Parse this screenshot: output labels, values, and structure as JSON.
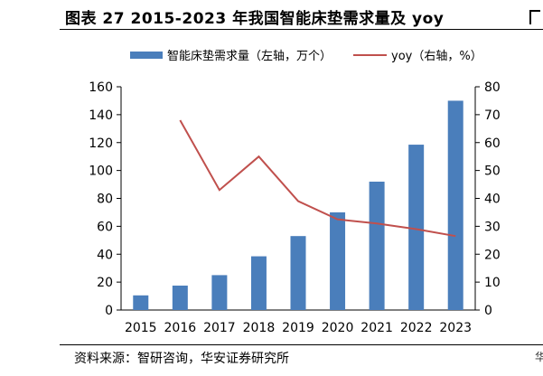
{
  "header": {
    "title": "图表 27 2015-2023 年我国智能床垫需求量及 yoy"
  },
  "footer": {
    "source": "资料来源：智研咨询，华安证券研究所",
    "edge_fragment": "华"
  },
  "chart_data": {
    "type": "bar",
    "title": "图表 27 2015-2023 年我国智能床垫需求量及 yoy",
    "categories": [
      "2015",
      "2016",
      "2017",
      "2018",
      "2019",
      "2020",
      "2021",
      "2022",
      "2023"
    ],
    "series": [
      {
        "name": "智能床垫需求量（左轴，万个）",
        "type": "bar",
        "axis": "left",
        "color": "#4a7ebb",
        "values": [
          10.5,
          17.5,
          25,
          38.5,
          53,
          70,
          92,
          118.5,
          150
        ]
      },
      {
        "name": "yoy（右轴，%）",
        "type": "line",
        "axis": "right",
        "color": "#c0504d",
        "values": [
          null,
          68,
          43,
          55,
          39,
          32.5,
          31,
          29,
          26.5
        ]
      }
    ],
    "y_left": {
      "min": 0,
      "max": 160,
      "ticks": [
        0,
        20,
        40,
        60,
        80,
        100,
        120,
        140,
        160
      ]
    },
    "y_right": {
      "min": 0,
      "max": 80,
      "ticks": [
        0,
        10,
        20,
        30,
        40,
        50,
        60,
        70,
        80
      ]
    },
    "grid": false,
    "legend_position": "top"
  }
}
